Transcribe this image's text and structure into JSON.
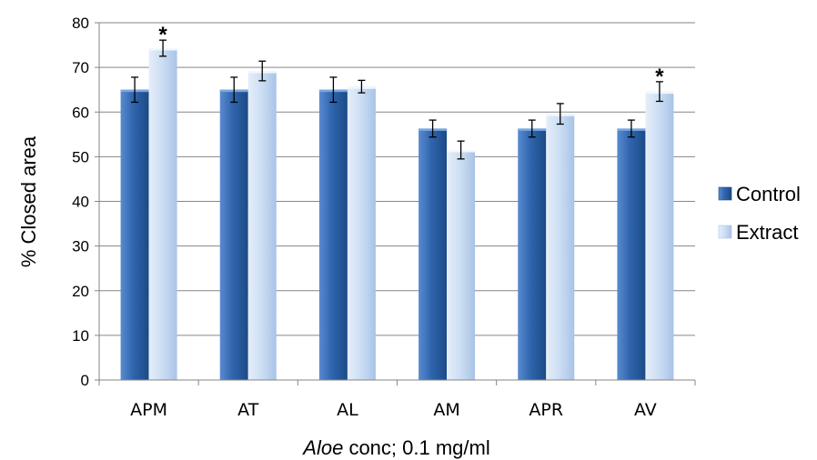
{
  "chart_data": {
    "type": "bar",
    "categories": [
      "APM",
      "AT",
      "AL",
      "AM",
      "APR",
      "AV"
    ],
    "series": [
      {
        "name": "Control",
        "color": "#2a5d9f",
        "values": [
          65,
          65,
          65,
          56.3,
          56.3,
          56.3
        ],
        "errors": [
          2.8,
          2.8,
          2.8,
          1.9,
          1.9,
          1.9
        ]
      },
      {
        "name": "Extract",
        "color": "#c6d9f1",
        "values": [
          74.3,
          69.2,
          65.7,
          51.5,
          59.6,
          64.6
        ],
        "errors": [
          1.8,
          2.2,
          1.4,
          2.0,
          2.3,
          2.2
        ]
      }
    ],
    "significance": [
      {
        "category": "APM",
        "series": "Extract",
        "mark": "*"
      },
      {
        "category": "AV",
        "series": "Extract",
        "mark": "*"
      }
    ],
    "xlabel": {
      "italic_part": "Aloe",
      "rest": " conc; 0.1 mg/ml"
    },
    "ylabel": "% Closed area",
    "ylim": [
      0,
      80
    ],
    "yticks": [
      0,
      10,
      20,
      30,
      40,
      50,
      60,
      70,
      80
    ],
    "grid": "horizontal",
    "legend": "right"
  }
}
